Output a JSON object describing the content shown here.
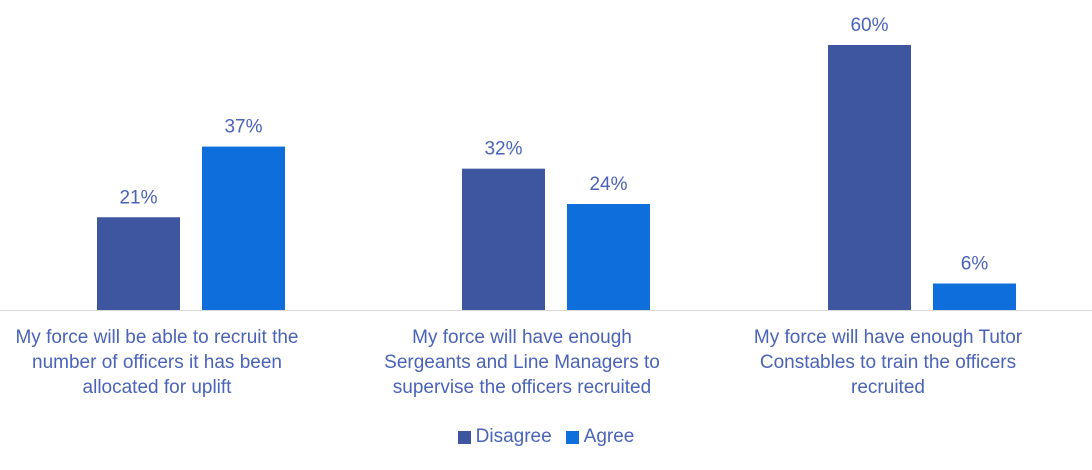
{
  "chart_data": {
    "type": "bar",
    "categories": [
      "My force will be able to recruit the number of officers it has been allocated for uplift",
      "My force will have enough Sergeants and Line Managers to supervise the officers recruited",
      "My force will have enough Tutor Constables to train the officers recruited"
    ],
    "series": [
      {
        "name": "Disagree",
        "values": [
          21,
          32,
          60
        ],
        "labels": [
          "21%",
          "32%",
          "60%"
        ],
        "color": "#3e56a0"
      },
      {
        "name": "Agree",
        "values": [
          37,
          24,
          6
        ],
        "labels": [
          "37%",
          "24%",
          "6%"
        ],
        "color": "#0e6fdc"
      }
    ],
    "ylim": [
      0,
      60
    ],
    "grid": false,
    "legend_position": "bottom"
  },
  "colors": {
    "label_text": "#4a63b8",
    "axis_line": "#d9d9d9"
  }
}
